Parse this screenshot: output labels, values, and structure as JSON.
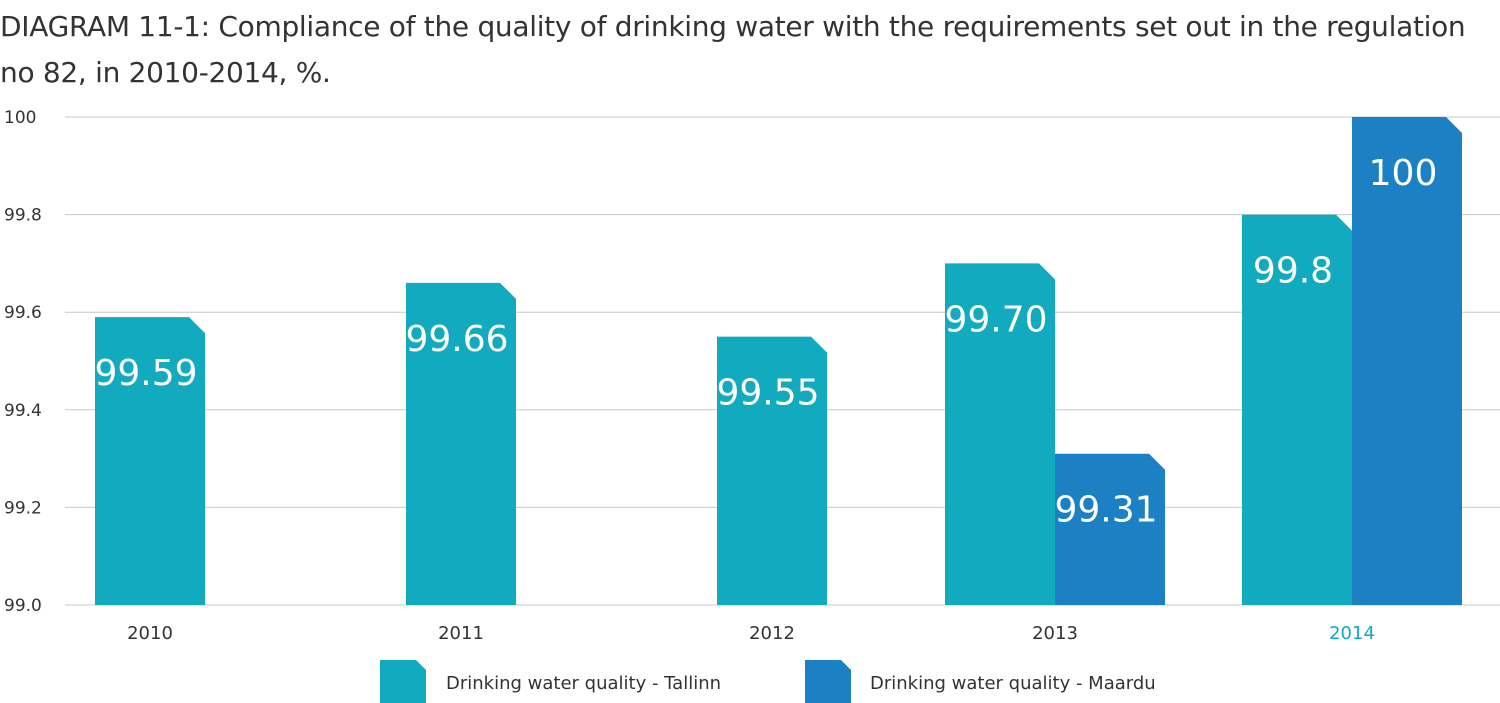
{
  "chart_data": {
    "type": "bar",
    "title": "DIAGRAM 11-1: Compliance of the quality of drinking water with the requirements set out in the regulation no 82, in 2010-2014, %.",
    "categories": [
      "2010",
      "2011",
      "2012",
      "2013",
      "2014"
    ],
    "highlight_category": "2014",
    "series": [
      {
        "name": "Drinking water quality - Tallinn",
        "color": "#11aabe",
        "values": [
          99.59,
          99.66,
          99.55,
          99.7,
          99.8
        ],
        "labels": [
          "99.59",
          "99.66",
          "99.55",
          "99.70",
          "99.8"
        ]
      },
      {
        "name": "Drinking water quality - Maardu",
        "color": "#1b80c4",
        "values": [
          null,
          null,
          null,
          99.31,
          100
        ],
        "labels": [
          "",
          "",
          "",
          "99.31",
          "100"
        ]
      }
    ],
    "ylim": [
      99.0,
      100
    ],
    "yticks": [
      "99.0",
      "99.2",
      "99.4",
      "99.6",
      "99.8",
      "100"
    ],
    "xlabel": "",
    "ylabel": "",
    "grid": true,
    "legend_position": "bottom-center"
  }
}
